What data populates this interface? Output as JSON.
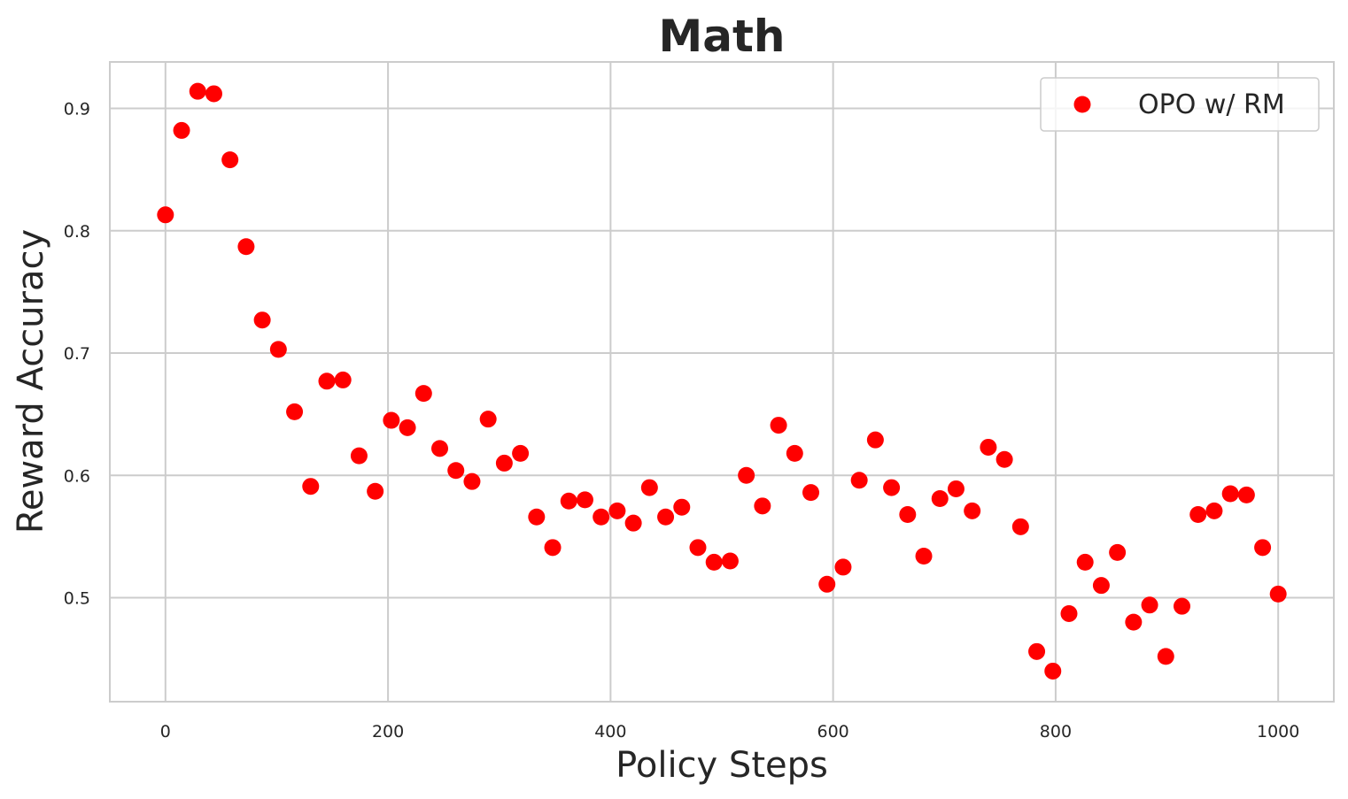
{
  "chart_data": {
    "type": "scatter",
    "title": "Math",
    "xlabel": "Policy Steps",
    "ylabel": "Reward Accuracy",
    "xlim": [
      -50,
      1050
    ],
    "ylim": [
      0.415,
      0.938
    ],
    "xticks": [
      0,
      200,
      400,
      600,
      800,
      1000
    ],
    "yticks": [
      0.5,
      0.6,
      0.7,
      0.8,
      0.9
    ],
    "xtick_labels": [
      "0",
      "200",
      "400",
      "600",
      "800",
      "1000"
    ],
    "ytick_labels": [
      "0.5",
      "0.6",
      "0.7",
      "0.8",
      "0.9"
    ],
    "grid": true,
    "legend_position": "upper right",
    "series": [
      {
        "name": "OPO w/ RM",
        "color": "#ff0000",
        "x": [
          0,
          14.5,
          29,
          43.5,
          58,
          72.5,
          87,
          101.5,
          116,
          130.5,
          145,
          159.5,
          174,
          188.5,
          203,
          217.5,
          232,
          246.5,
          261,
          275.5,
          290,
          304.5,
          319,
          333.5,
          348,
          362.5,
          377,
          391.5,
          406,
          420.5,
          435,
          449.5,
          464,
          478.5,
          493,
          507.5,
          522,
          536.5,
          551,
          565.5,
          580,
          594.5,
          609,
          623.5,
          638,
          652.5,
          667,
          681.5,
          696,
          710.5,
          725,
          739.5,
          754,
          768.5,
          783,
          797.5,
          812,
          826.5,
          841,
          855.5,
          870,
          884.5,
          899,
          913.5,
          928,
          942.5,
          957,
          971.5,
          986,
          1000
        ],
        "y": [
          0.813,
          0.882,
          0.914,
          0.912,
          0.858,
          0.787,
          0.727,
          0.703,
          0.652,
          0.591,
          0.677,
          0.678,
          0.616,
          0.587,
          0.645,
          0.639,
          0.667,
          0.622,
          0.604,
          0.595,
          0.646,
          0.61,
          0.618,
          0.566,
          0.541,
          0.579,
          0.58,
          0.566,
          0.571,
          0.561,
          0.59,
          0.566,
          0.574,
          0.541,
          0.529,
          0.53,
          0.6,
          0.575,
          0.641,
          0.618,
          0.586,
          0.511,
          0.525,
          0.596,
          0.629,
          0.59,
          0.568,
          0.534,
          0.581,
          0.589,
          0.571,
          0.623,
          0.613,
          0.558,
          0.456,
          0.44,
          0.487,
          0.529,
          0.51,
          0.537,
          0.48,
          0.494,
          0.452,
          0.493,
          0.568,
          0.571,
          0.585,
          0.584,
          0.541,
          0.503
        ]
      }
    ]
  }
}
